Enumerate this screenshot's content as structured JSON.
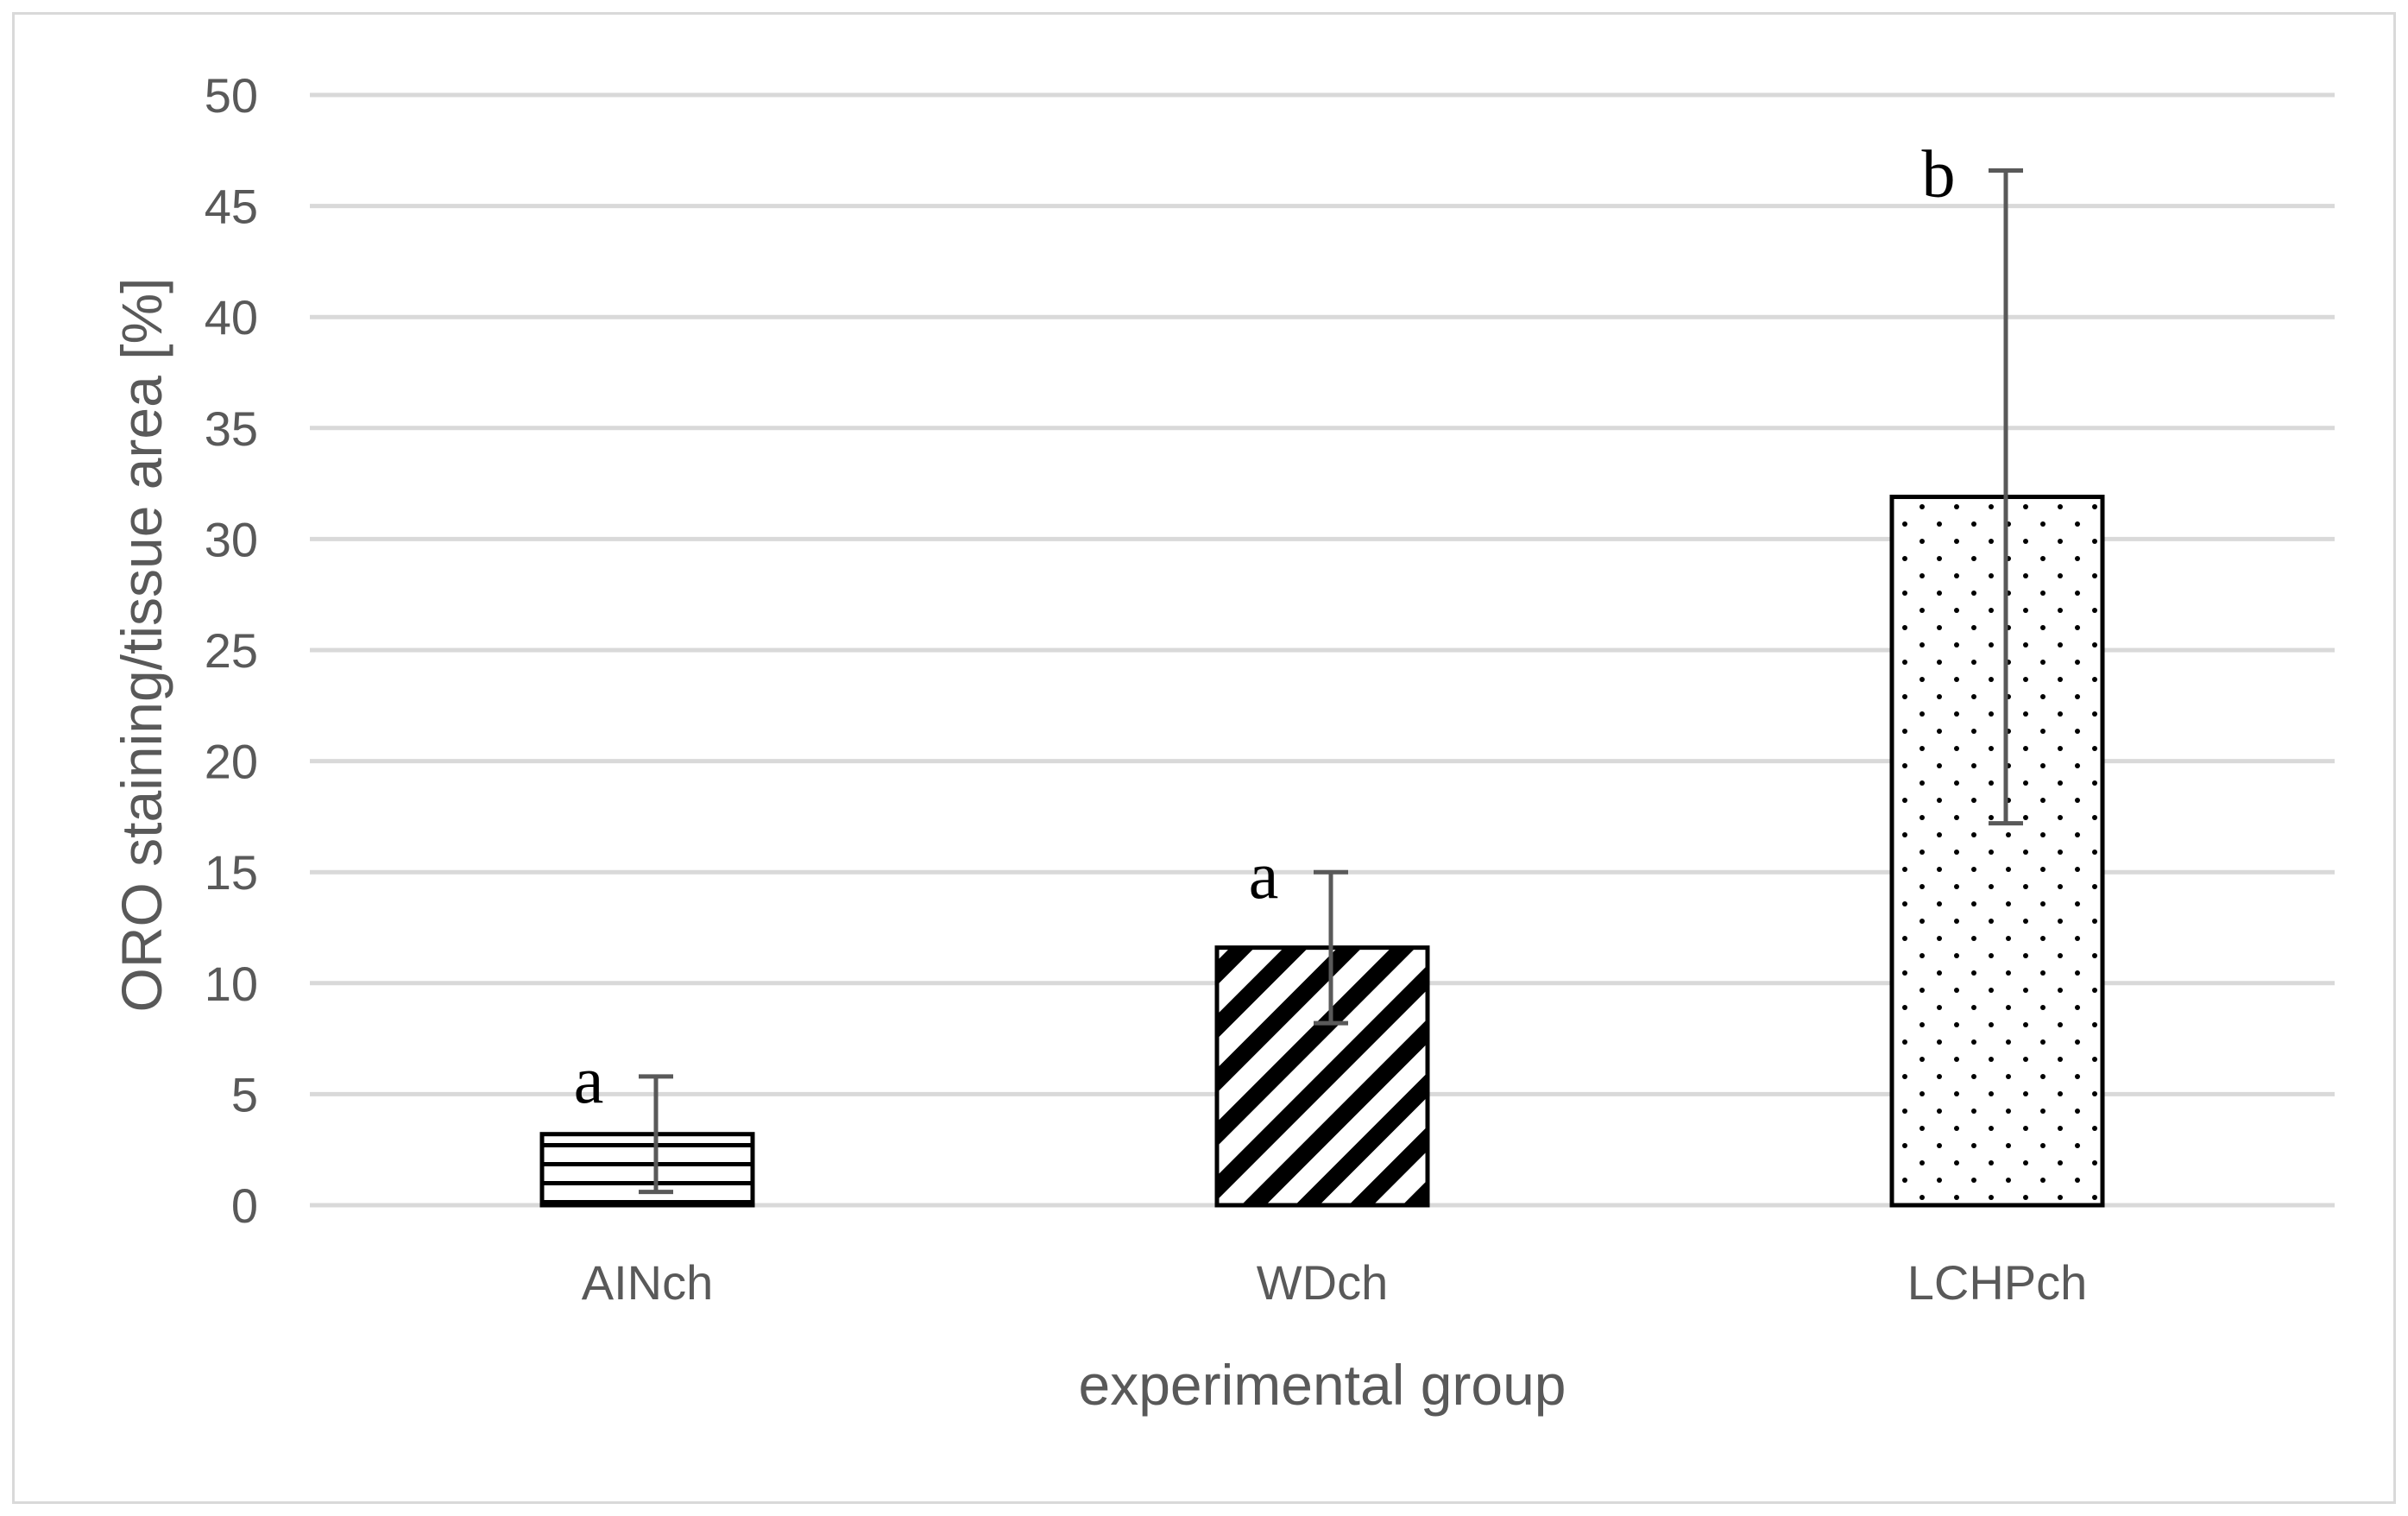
{
  "chart_data": {
    "type": "bar",
    "title": "",
    "xlabel": "experimental group",
    "ylabel": "ORO staining/tissue area [%]",
    "ylim": [
      0,
      50
    ],
    "yticks": [
      0,
      5,
      10,
      15,
      20,
      25,
      30,
      35,
      40,
      45,
      50
    ],
    "grid": true,
    "categories": [
      "AINch",
      "WDch",
      "LCHPch"
    ],
    "values": [
      3.2,
      11.6,
      31.9
    ],
    "error": [
      2.6,
      3.4,
      14.7
    ],
    "significance_letters": [
      "a",
      "a",
      "b"
    ],
    "patterns": [
      "horizontal-lines",
      "diagonal-stripes",
      "dots"
    ],
    "colors": {
      "bar_edge": "#000000",
      "error_bar": "#595959",
      "grid": "#d9d9d9",
      "text": "#595959",
      "frame": "#d9d9d9"
    }
  }
}
